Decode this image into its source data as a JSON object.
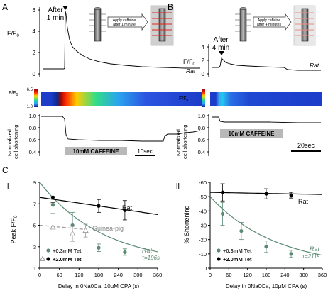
{
  "panel_labels": {
    "A": "A",
    "B": "B",
    "C": "C",
    "i": "i",
    "ii": "ii"
  },
  "traceA": {
    "arrow_label_1": "After",
    "arrow_label_2": "1 min",
    "ylabel": "F/F",
    "ylabel_sub": "0",
    "yticks": [
      "6",
      "4",
      "2",
      "0"
    ],
    "species": "Rat",
    "heat_label": "F/F",
    "heat_label_sub": "0",
    "heat_ticks": [
      "6.5",
      "1.0"
    ],
    "short_ylabel_1": "Normalized",
    "short_ylabel_2": "cell shortening",
    "short_ticks": [
      "1.0",
      "0.8",
      "0.6",
      "0.4"
    ],
    "caffeine": "10mM CAFFEINE",
    "scalebar": "10sec",
    "cartoon_text_1": "Apply caffeine",
    "cartoon_text_2": "after 1 minute"
  },
  "traceB": {
    "arrow_label_1": "After",
    "arrow_label_2": "4 min",
    "ylabel": "F/F",
    "ylabel_sub": "0",
    "yticks": [
      "4",
      "2",
      "0"
    ],
    "species": "Rat",
    "heat_label": "F/F",
    "heat_label_sub": "0",
    "short_ylabel_1": "Normalized",
    "short_ylabel_2": "cell shortening",
    "short_ticks": [
      "1.0",
      "0.8",
      "0.6",
      "0.4"
    ],
    "caffeine": "10mM CAFFEINE",
    "scalebar": "20sec",
    "cartoon_text_1": "Apply caffeine",
    "cartoon_text_2": "after 4 minutes"
  },
  "colors": {
    "tet03": "#5b8a74",
    "tet2": "#000000",
    "guinea": "#999999"
  },
  "chart_data": [
    {
      "type": "scatter",
      "panel": "Ci",
      "xlabel": "Delay in 0Na0Ca, 10μM CPA (s)",
      "ylabel": "Peak F/F",
      "ylabel_sub": "0",
      "xlim": [
        0,
        360
      ],
      "ylim": [
        1,
        9
      ],
      "xticks": [
        "0",
        "60",
        "120",
        "180",
        "240",
        "300",
        "360"
      ],
      "yticks": [
        "1",
        "3",
        "5",
        "7",
        "9"
      ],
      "legend": [
        "+0.3mM Tet",
        "+2.0mM Tet"
      ],
      "legend_placement": "bottom-left",
      "annotations": {
        "rat_upper": "Rat",
        "guinea": "Guinea-pig",
        "rat_lower": "Rat",
        "tau": "τ=196s"
      },
      "series": [
        {
          "color": "#5b8a74",
          "x": [
            40,
            100,
            180,
            260
          ],
          "y": [
            6.9,
            5.0,
            2.9,
            2.5
          ],
          "err": [
            0.8,
            1.2,
            0.35,
            0.3
          ],
          "marker": "filled"
        },
        {
          "color": "#000000",
          "x": [
            40,
            180,
            260
          ],
          "y": [
            7.6,
            6.8,
            6.4
          ],
          "err": [
            0.5,
            0.6,
            0.9
          ],
          "marker": "filled"
        },
        {
          "color": "#999999",
          "x": [
            40,
            100,
            140
          ],
          "y": [
            4.8,
            4.2,
            4.5
          ],
          "err": [
            0.8,
            0.7,
            0.6
          ],
          "marker": "open"
        }
      ],
      "fits": [
        {
          "color": "#5b8a74",
          "kind": "exp",
          "y0": 9,
          "yinf": 1.3,
          "tau": 196
        },
        {
          "color": "#000000",
          "kind": "line",
          "y0": 7.6,
          "y360": 6.0
        },
        {
          "color": "#999999",
          "kind": "line",
          "y0": 5.0,
          "y360": 4.0,
          "xmax": 140
        }
      ]
    },
    {
      "type": "scatter",
      "panel": "Cii",
      "xlabel": "Delay in 0Na0Ca, 10μM CPA (s)",
      "ylabel": "% Shortening",
      "xlim": [
        0,
        360
      ],
      "ylim": [
        0,
        -60
      ],
      "xticks": [
        "0",
        "60",
        "120",
        "180",
        "240",
        "300",
        "360"
      ],
      "yticks": [
        "0",
        "-10",
        "-20",
        "-30",
        "-40",
        "-50",
        "-60"
      ],
      "legend": [
        "+0.3mM Tet",
        "+2.0mM Tet"
      ],
      "legend_placement": "bottom-left",
      "annotations": {
        "rat_upper": "Rat",
        "rat_lower": "Rat",
        "tau": "τ=211s"
      },
      "series": [
        {
          "color": "#5b8a74",
          "x": [
            40,
            100,
            180,
            260
          ],
          "y": [
            -38,
            -26,
            -15,
            -10
          ],
          "err": [
            8,
            6,
            4,
            2.5
          ],
          "marker": "filled"
        },
        {
          "color": "#000000",
          "x": [
            40,
            180,
            260
          ],
          "y": [
            -53,
            -52,
            -51
          ],
          "err": [
            6,
            3.5,
            2
          ],
          "marker": "filled"
        }
      ],
      "fits": [
        {
          "color": "#5b8a74",
          "kind": "exp",
          "y0": -50,
          "yinf": 0,
          "tau": 211
        },
        {
          "color": "#000000",
          "kind": "line",
          "y0": -53,
          "y360": -51.5
        }
      ]
    }
  ]
}
